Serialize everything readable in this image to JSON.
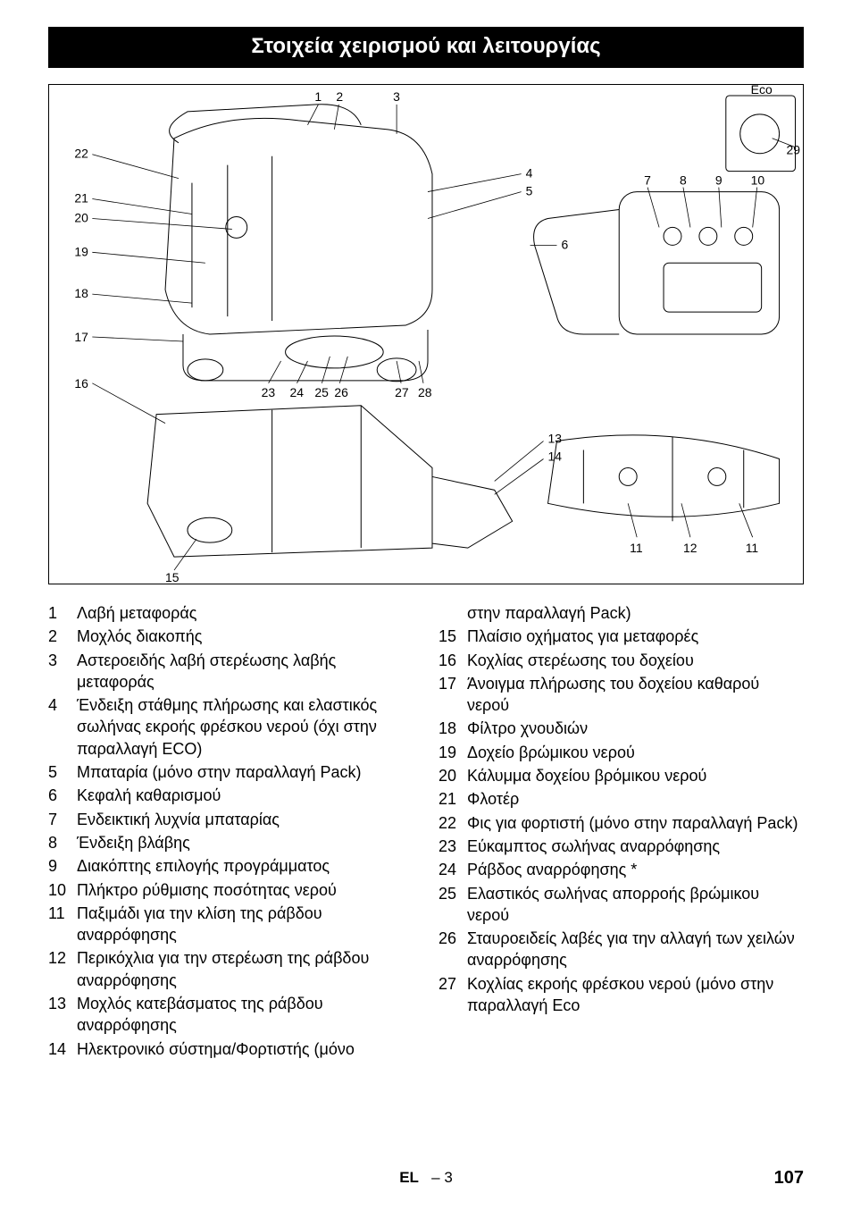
{
  "title": "Στοιχεία χειρισμού και λειτουργίας",
  "diagram": {
    "eco_label": "Eco",
    "callouts_left": [
      "22",
      "21",
      "20",
      "19",
      "18",
      "17",
      "16"
    ],
    "callouts_top": [
      "1",
      "2",
      "3"
    ],
    "callouts_mid_right": [
      "4",
      "5",
      "6"
    ],
    "callouts_top_right": [
      "7",
      "8",
      "9",
      "10"
    ],
    "callout_far_right": "29",
    "callouts_bottom_mid": [
      "23",
      "24",
      "25",
      "26",
      "27",
      "28"
    ],
    "callouts_lower_mid": [
      "13",
      "14"
    ],
    "callouts_bottom_right": [
      "11",
      "12",
      "11"
    ],
    "callout_bottom_left": "15"
  },
  "left_items": [
    {
      "n": "1",
      "t": "Λαβή μεταφοράς"
    },
    {
      "n": "2",
      "t": "Μοχλός διακοπής"
    },
    {
      "n": "3",
      "t": "Αστεροειδής λαβή στερέωσης λαβής μεταφοράς"
    },
    {
      "n": "4",
      "t": "Ένδειξη στάθμης πλήρωσης και ελαστικός σωλήνας εκροής φρέσκου νερού (όχι στην παραλλαγή ECO)"
    },
    {
      "n": "5",
      "t": "Μπαταρία (μόνο στην παραλλαγή Pack)"
    },
    {
      "n": "6",
      "t": "Κεφαλή καθαρισμού"
    },
    {
      "n": "7",
      "t": "Ενδεικτική λυχνία μπαταρίας"
    },
    {
      "n": "8",
      "t": "Ένδειξη βλάβης"
    },
    {
      "n": "9",
      "t": "Διακόπτης επιλογής προγράμματος"
    },
    {
      "n": "10",
      "t": "Πλήκτρο ρύθμισης ποσότητας νερού"
    },
    {
      "n": "11",
      "t": "Παξιμάδι για την κλίση της ράβδου αναρρόφησης"
    },
    {
      "n": "12",
      "t": "Περικόχλια για την στερέωση της ράβδου αναρρόφησης"
    },
    {
      "n": "13",
      "t": "Μοχλός κατεβάσματος της ράβδου αναρρόφησης"
    },
    {
      "n": "14",
      "t": "Ηλεκτρονικό σύστημα/Φορτιστής (μόνο"
    }
  ],
  "right_continuation": "στην παραλλαγή Pack)",
  "right_items": [
    {
      "n": "15",
      "t": "Πλαίσιο οχήματος για μεταφορές"
    },
    {
      "n": "16",
      "t": "Κοχλίας στερέωσης του δοχείου"
    },
    {
      "n": "17",
      "t": "Άνοιγμα πλήρωσης του δοχείου καθαρού νερού"
    },
    {
      "n": "18",
      "t": "Φίλτρο χνουδιών"
    },
    {
      "n": "19",
      "t": "Δοχείο βρώμικου νερού"
    },
    {
      "n": "20",
      "t": "Κάλυμμα δοχείου βρόμικου νερού"
    },
    {
      "n": "21",
      "t": "Φλοτέρ"
    },
    {
      "n": "22",
      "t": "Φις για φορτιστή (μόνο στην παραλλαγή Pack)"
    },
    {
      "n": "23",
      "t": "Εύκαμπτος σωλήνας αναρρόφησης"
    },
    {
      "n": "24",
      "t": "Ράβδος αναρρόφησης *"
    },
    {
      "n": "25",
      "t": "Ελαστικός σωλήνας απορροής βρώμικου νερού"
    },
    {
      "n": "26",
      "t": "Σταυροειδείς λαβές για την αλλαγή των χειλών αναρρόφησης"
    },
    {
      "n": "27",
      "t": "Κοχλίας εκροής φρέσκου νερού (μόνο στην παραλλαγή Eco"
    }
  ],
  "footer_lang": "EL",
  "footer_sep": "–",
  "footer_page_local": "3",
  "page_number": "107"
}
